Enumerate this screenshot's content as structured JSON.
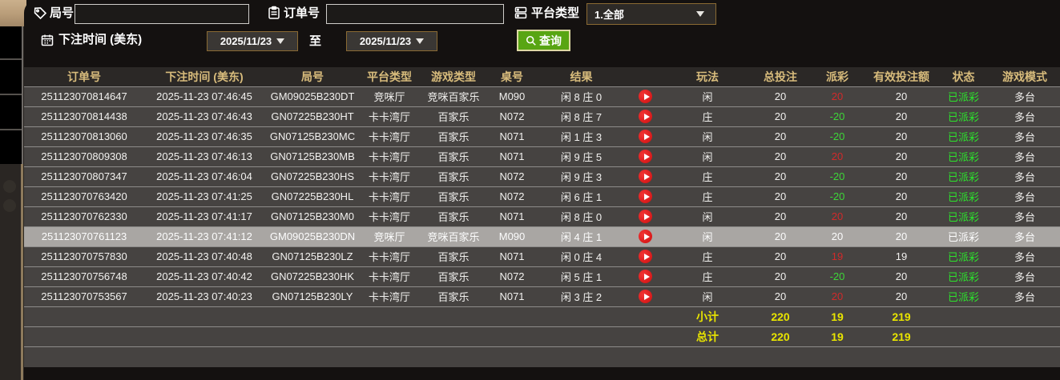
{
  "topbar": {
    "round_label": "局号",
    "round_value": "",
    "order_label": "订单号",
    "order_value": "",
    "platform_label": "平台类型",
    "platform_value": "1.全部",
    "bet_time_label": "下注时间 (美东)",
    "date_from": "2025/11/23",
    "to_label": "至",
    "date_to": "2025/11/23",
    "search_label": "查询"
  },
  "table": {
    "columns": [
      "订单号",
      "下注时间 (美东)",
      "局号",
      "平台类型",
      "游戏类型",
      "桌号",
      "结果",
      "",
      "玩法",
      "总投注",
      "派彩",
      "有效投注额",
      "状态",
      "游戏模式"
    ],
    "rows": [
      {
        "order": "251123070814647",
        "bet_time": "2025-11-23 07:46:45",
        "round": "GM09025B230DT",
        "platform": "竞咪厅",
        "game_type": "竞咪百家乐",
        "table_no": "M090",
        "result": "闲 8 庄 0",
        "bet_on": "闲",
        "total_bet": "20",
        "payout": "20",
        "valid_bet": "20",
        "status": "已派彩",
        "mode": "多台",
        "highlighted": false
      },
      {
        "order": "251123070814438",
        "bet_time": "2025-11-23 07:46:43",
        "round": "GN07225B230HT",
        "platform": "卡卡湾厅",
        "game_type": "百家乐",
        "table_no": "N072",
        "result": "闲 8 庄 7",
        "bet_on": "庄",
        "total_bet": "20",
        "payout": "-20",
        "valid_bet": "20",
        "status": "已派彩",
        "mode": "多台",
        "highlighted": false
      },
      {
        "order": "251123070813060",
        "bet_time": "2025-11-23 07:46:35",
        "round": "GN07125B230MC",
        "platform": "卡卡湾厅",
        "game_type": "百家乐",
        "table_no": "N071",
        "result": "闲 1 庄 3",
        "bet_on": "闲",
        "total_bet": "20",
        "payout": "-20",
        "valid_bet": "20",
        "status": "已派彩",
        "mode": "多台",
        "highlighted": false
      },
      {
        "order": "251123070809308",
        "bet_time": "2025-11-23 07:46:13",
        "round": "GN07125B230MB",
        "platform": "卡卡湾厅",
        "game_type": "百家乐",
        "table_no": "N071",
        "result": "闲 9 庄 5",
        "bet_on": "闲",
        "total_bet": "20",
        "payout": "20",
        "valid_bet": "20",
        "status": "已派彩",
        "mode": "多台",
        "highlighted": false
      },
      {
        "order": "251123070807347",
        "bet_time": "2025-11-23 07:46:04",
        "round": "GN07225B230HS",
        "platform": "卡卡湾厅",
        "game_type": "百家乐",
        "table_no": "N072",
        "result": "闲 9 庄 3",
        "bet_on": "庄",
        "total_bet": "20",
        "payout": "-20",
        "valid_bet": "20",
        "status": "已派彩",
        "mode": "多台",
        "highlighted": false
      },
      {
        "order": "251123070763420",
        "bet_time": "2025-11-23 07:41:25",
        "round": "GN07225B230HL",
        "platform": "卡卡湾厅",
        "game_type": "百家乐",
        "table_no": "N072",
        "result": "闲 6 庄 1",
        "bet_on": "庄",
        "total_bet": "20",
        "payout": "-20",
        "valid_bet": "20",
        "status": "已派彩",
        "mode": "多台",
        "highlighted": false
      },
      {
        "order": "251123070762330",
        "bet_time": "2025-11-23 07:41:17",
        "round": "GN07125B230M0",
        "platform": "卡卡湾厅",
        "game_type": "百家乐",
        "table_no": "N071",
        "result": "闲 8 庄 0",
        "bet_on": "闲",
        "total_bet": "20",
        "payout": "20",
        "valid_bet": "20",
        "status": "已派彩",
        "mode": "多台",
        "highlighted": false
      },
      {
        "order": "251123070761123",
        "bet_time": "2025-11-23 07:41:12",
        "round": "GM09025B230DN",
        "platform": "竞咪厅",
        "game_type": "竞咪百家乐",
        "table_no": "M090",
        "result": "闲 4 庄 1",
        "bet_on": "闲",
        "total_bet": "20",
        "payout": "20",
        "valid_bet": "20",
        "status": "已派彩",
        "mode": "多台",
        "highlighted": true
      },
      {
        "order": "251123070757830",
        "bet_time": "2025-11-23 07:40:48",
        "round": "GN07125B230LZ",
        "platform": "卡卡湾厅",
        "game_type": "百家乐",
        "table_no": "N071",
        "result": "闲 0 庄 4",
        "bet_on": "庄",
        "total_bet": "20",
        "payout": "19",
        "valid_bet": "19",
        "status": "已派彩",
        "mode": "多台",
        "highlighted": false
      },
      {
        "order": "251123070756748",
        "bet_time": "2025-11-23 07:40:42",
        "round": "GN07225B230HK",
        "platform": "卡卡湾厅",
        "game_type": "百家乐",
        "table_no": "N072",
        "result": "闲 5 庄 1",
        "bet_on": "庄",
        "total_bet": "20",
        "payout": "-20",
        "valid_bet": "20",
        "status": "已派彩",
        "mode": "多台",
        "highlighted": false
      },
      {
        "order": "251123070753567",
        "bet_time": "2025-11-23 07:40:23",
        "round": "GN07125B230LY",
        "platform": "卡卡湾厅",
        "game_type": "百家乐",
        "table_no": "N071",
        "result": "闲 3 庄 2",
        "bet_on": "闲",
        "total_bet": "20",
        "payout": "20",
        "valid_bet": "20",
        "status": "已派彩",
        "mode": "多台",
        "highlighted": false
      }
    ],
    "subtotal": {
      "label": "小计",
      "total_bet": "220",
      "payout": "19",
      "valid_bet": "219"
    },
    "grand_total": {
      "label": "总计",
      "total_bet": "220",
      "payout": "19",
      "valid_bet": "219"
    }
  },
  "colors": {
    "panel_bg": "#141110",
    "row_bg": "#464341",
    "row_highlight": "#a9a6a3",
    "header_text": "#d8bc7c",
    "payout_positive": "#d22a2a",
    "payout_negative": "#3dd838",
    "status_paid": "#2ce42c",
    "totals_yellow": "#e8e400",
    "search_button": "#58a513",
    "select_border": "#8a6a33"
  }
}
